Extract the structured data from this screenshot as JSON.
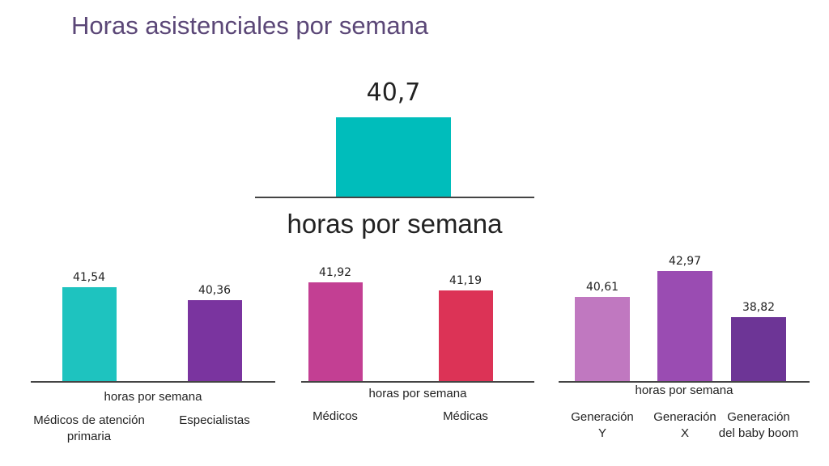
{
  "title": "Horas asistenciales por semana",
  "chart_data": [
    {
      "type": "bar",
      "categories": [
        null
      ],
      "values": [
        40.7
      ],
      "value_labels": [
        "40,7"
      ],
      "colors": [
        "#00bdbb"
      ],
      "xlabel": "horas por semana",
      "ylim": [
        33,
        44
      ]
    },
    {
      "type": "bar",
      "categories": [
        "Médicos de atención primaria",
        "Especialistas"
      ],
      "values": [
        41.54,
        40.36
      ],
      "value_labels": [
        "41,54",
        "40,36"
      ],
      "colors": [
        "#1ec3bf",
        "#7a349f"
      ],
      "xlabel": "horas por semana",
      "ylim": [
        33,
        44
      ]
    },
    {
      "type": "bar",
      "categories": [
        "Médicos",
        "Médicas"
      ],
      "values": [
        41.92,
        41.19
      ],
      "value_labels": [
        "41,92",
        "41,19"
      ],
      "colors": [
        "#c33f93",
        "#dc3356"
      ],
      "xlabel": "horas por semana",
      "ylim": [
        33,
        44
      ]
    },
    {
      "type": "bar",
      "categories": [
        "Generación Y",
        "Generación X",
        "Generación del baby boom"
      ],
      "values": [
        40.61,
        42.97,
        38.82
      ],
      "value_labels": [
        "40,61",
        "42,97",
        "38,82"
      ],
      "colors": [
        "#c078c0",
        "#9a4cb2",
        "#6d3596"
      ],
      "xlabel": "horas por semana",
      "ylim": [
        33,
        44
      ]
    }
  ]
}
